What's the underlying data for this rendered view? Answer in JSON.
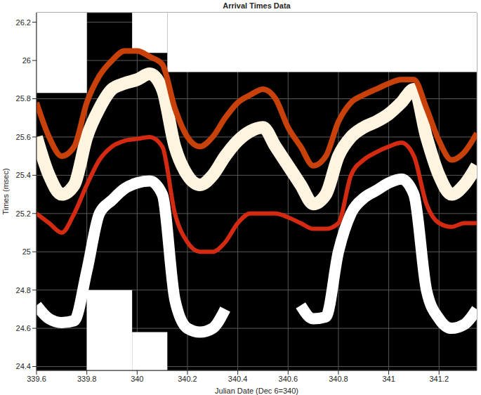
{
  "chart_data": {
    "type": "line",
    "title": "Arrival Times Data",
    "x_label": "Julian Date (Dec 6=340)",
    "y_label": "Times (msec)",
    "x": [
      339.6,
      339.65,
      339.7,
      339.75,
      339.8,
      339.85,
      339.9,
      339.95,
      340,
      340.05,
      340.1,
      340.15,
      340.2,
      340.25,
      340.3,
      340.35,
      340.4,
      340.45,
      340.5,
      340.55,
      340.6,
      340.65,
      340.7,
      340.75,
      340.8,
      340.85,
      340.9,
      340.95,
      341,
      341.05,
      341.1,
      341.15,
      341.2,
      341.25,
      341.3,
      341.35
    ],
    "series": [
      {
        "color": "#ffffff",
        "values": [
          24.72,
          24.65,
          24.63,
          24.64,
          24.9,
          25.2,
          25.27,
          25.33,
          25.36,
          25.37,
          25.3,
          24.75,
          24.6,
          24.58,
          24.6,
          24.7,
          null,
          null,
          null,
          null,
          null,
          24.72,
          24.65,
          24.66,
          25.0,
          25.2,
          25.28,
          25.32,
          25.36,
          25.38,
          25.3,
          24.8,
          24.65,
          24.6,
          24.62,
          24.7
        ]
      },
      {
        "color": "#d42a12",
        "values": [
          25.2,
          25.15,
          25.1,
          25.2,
          25.35,
          25.48,
          25.55,
          25.58,
          25.59,
          25.6,
          25.55,
          25.2,
          25.05,
          25.0,
          25.0,
          25.05,
          25.15,
          25.2,
          25.2,
          25.2,
          25.18,
          25.15,
          25.12,
          25.12,
          25.15,
          25.4,
          25.48,
          25.52,
          25.55,
          25.57,
          25.5,
          25.25,
          25.15,
          25.13,
          25.15,
          25.15
        ]
      },
      {
        "color": "#fff4e0",
        "values": [
          25.6,
          25.4,
          25.3,
          25.35,
          25.6,
          25.75,
          25.85,
          25.88,
          25.9,
          25.93,
          25.85,
          25.55,
          25.4,
          25.35,
          25.4,
          25.5,
          25.58,
          25.63,
          25.65,
          25.55,
          25.45,
          25.35,
          25.25,
          25.3,
          25.5,
          25.6,
          25.65,
          25.68,
          25.72,
          25.78,
          25.85,
          25.6,
          25.4,
          25.3,
          25.35,
          25.45
        ]
      },
      {
        "color": "#c8400a",
        "values": [
          25.78,
          25.6,
          25.5,
          25.55,
          25.78,
          25.92,
          26.0,
          26.05,
          26.05,
          26.02,
          25.98,
          25.75,
          25.6,
          25.55,
          25.6,
          25.7,
          25.78,
          25.82,
          25.85,
          25.8,
          25.65,
          25.55,
          25.45,
          25.5,
          25.68,
          25.78,
          25.82,
          25.85,
          25.88,
          25.9,
          25.9,
          25.75,
          25.58,
          25.48,
          25.52,
          25.62
        ]
      }
    ],
    "no_data": [
      {
        "x": [
          339.6,
          339.8
        ],
        "y": [
          25.83,
          26.25
        ]
      },
      {
        "x": [
          339.98,
          340.12
        ],
        "y": [
          26.04,
          26.25
        ]
      },
      {
        "x": [
          340.12,
          341.35
        ],
        "y": [
          25.94,
          26.25
        ]
      },
      {
        "x": [
          339.8,
          339.98
        ],
        "y": [
          24.38,
          24.8
        ]
      },
      {
        "x": [
          339.98,
          340.12
        ],
        "y": [
          24.38,
          24.58
        ]
      }
    ],
    "xlim": [
      339.6,
      341.35
    ],
    "xticks": [
      339.6,
      339.8,
      340,
      340.2,
      340.4,
      340.6,
      340.8,
      341,
      341.2
    ],
    "ylim": [
      24.38,
      26.25
    ],
    "yticks": [
      24.4,
      24.6,
      24.8,
      25,
      25.2,
      25.4,
      25.6,
      25.8,
      26,
      26.2
    ],
    "grid": true
  }
}
